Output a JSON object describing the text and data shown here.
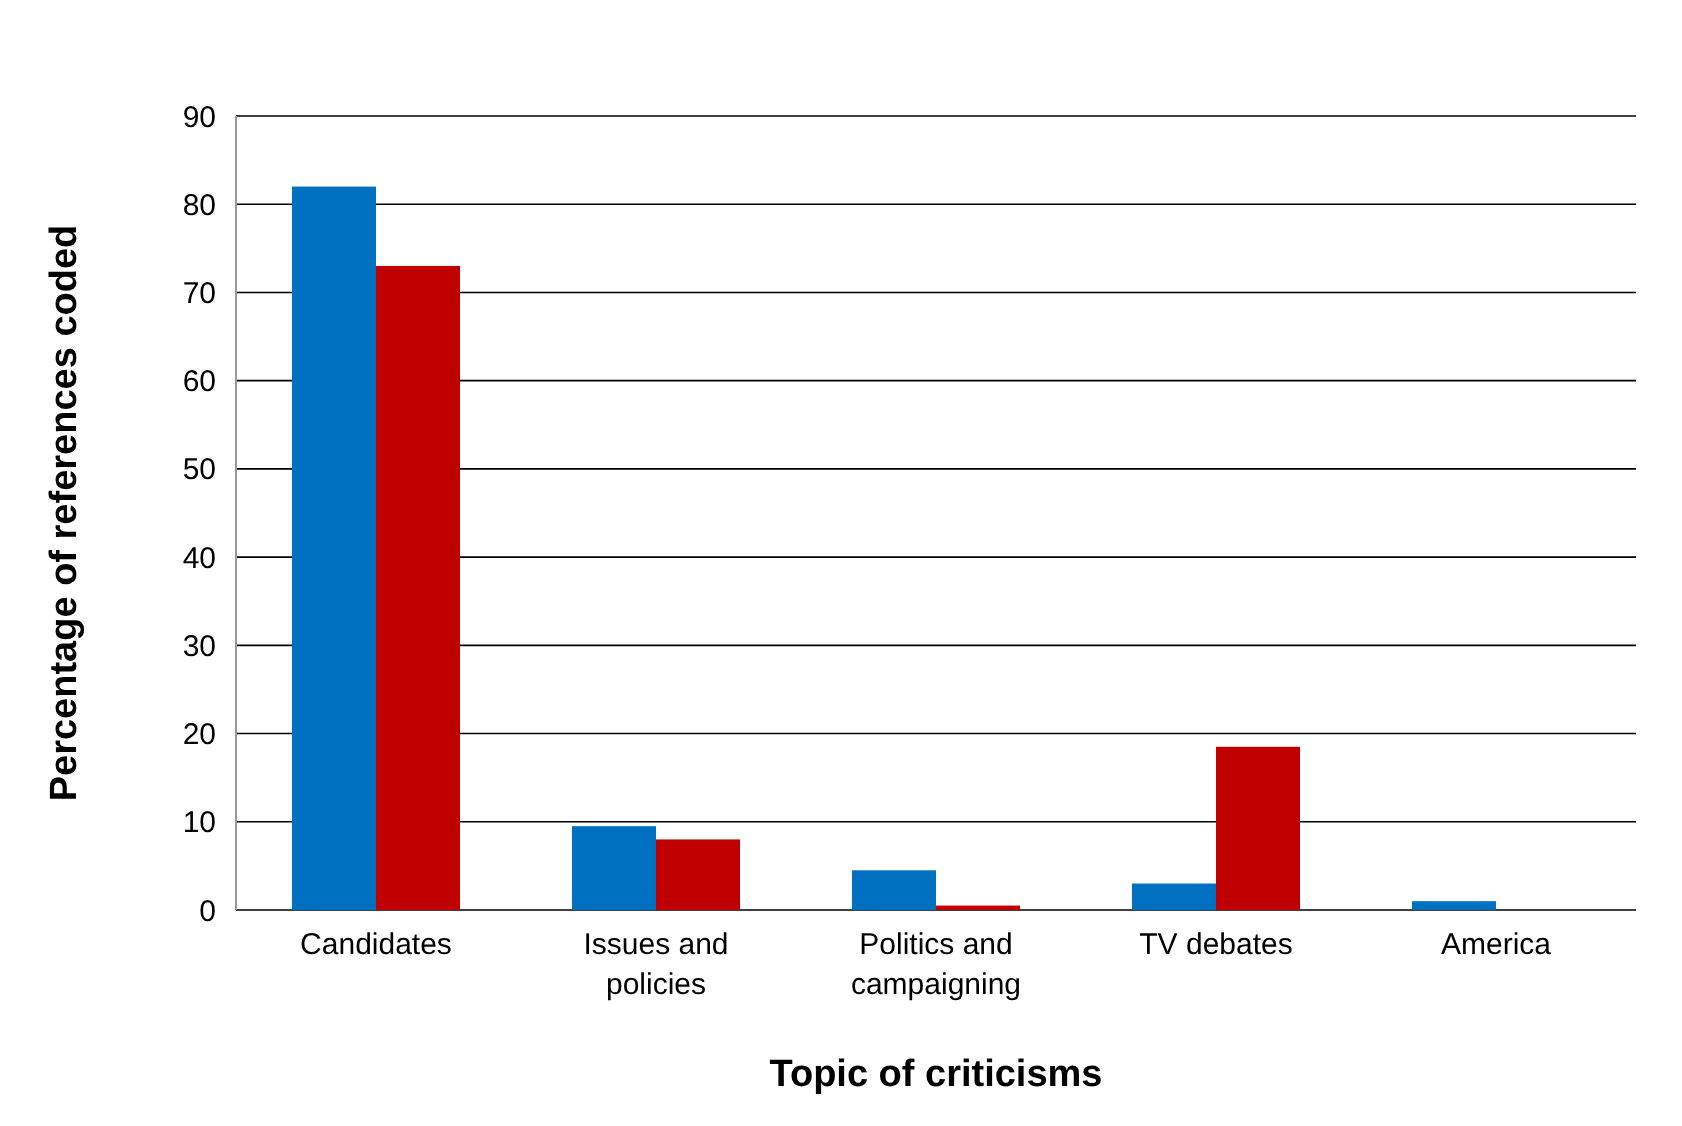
{
  "chart_data": {
    "type": "bar",
    "xlabel": "Topic of criticisms",
    "ylabel": "Percentage of references coded",
    "categories": [
      "Candidates",
      "Issues and policies",
      "Politics and campaigning",
      "TV debates",
      "America"
    ],
    "series": [
      {
        "color": "#0070c0",
        "values": [
          82,
          9.5,
          4.5,
          3,
          1
        ]
      },
      {
        "color": "#c00000",
        "values": [
          73,
          8,
          0.5,
          18.5,
          0
        ]
      }
    ],
    "ylim": [
      0,
      90
    ],
    "yticks": [
      0,
      10,
      20,
      30,
      40,
      50,
      60,
      70,
      80,
      90
    ],
    "grid": "y"
  }
}
